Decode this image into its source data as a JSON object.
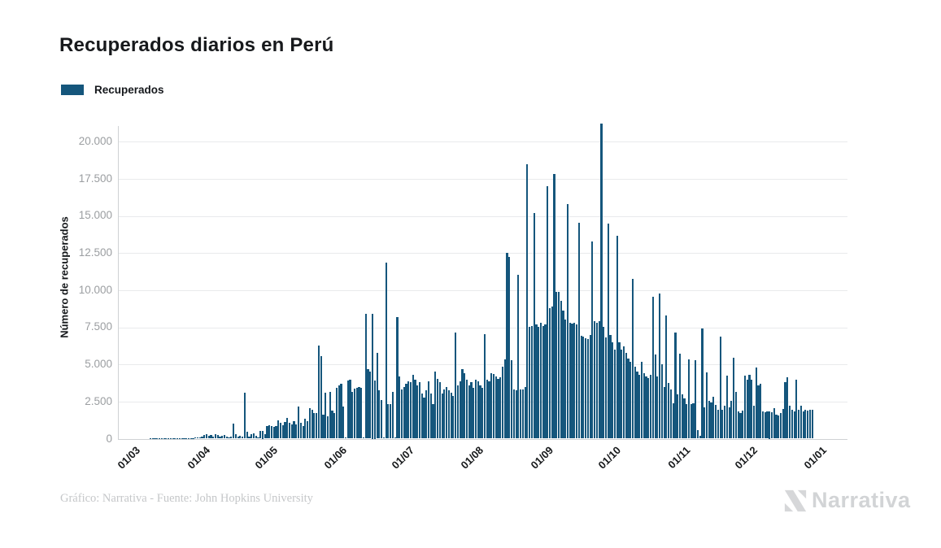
{
  "title": "Recuperados diarios en Perú",
  "legend": {
    "label": "Recuperados",
    "color": "#15567c"
  },
  "y_axis": {
    "title": "Número de recuperados",
    "tick_labels": [
      "0",
      "2.500",
      "5.000",
      "7.500",
      "10.000",
      "12.500",
      "15.000",
      "17.500",
      "20.000"
    ],
    "max": 20000,
    "step": 2500
  },
  "x_axis": {
    "tick_labels": [
      "01/03",
      "01/04",
      "01/05",
      "01/06",
      "01/07",
      "01/08",
      "01/09",
      "01/10",
      "01/11",
      "01/12",
      "01/01"
    ]
  },
  "footer": {
    "credit": "Gráfico: Narrativa - Fuente: John Hopkins University"
  },
  "logo": {
    "text": "Narrativa"
  },
  "chart_data": {
    "type": "bar",
    "title": "Recuperados diarios en Perú",
    "xlabel": "",
    "ylabel": "Número de recuperados",
    "ylim": [
      0,
      21500
    ],
    "grid": true,
    "legend_position": "top-left",
    "series_name": "Recuperados",
    "bar_color": "#15567c",
    "frequency": "daily",
    "start_date": "01/03",
    "end_date": "31/12",
    "x_tick_labels": [
      "01/03",
      "01/04",
      "01/05",
      "01/06",
      "01/07",
      "01/08",
      "01/09",
      "01/10",
      "01/11",
      "01/12",
      "01/01"
    ],
    "month_day_offsets": [
      0,
      31,
      61,
      92,
      122,
      153,
      184,
      214,
      245,
      275,
      306
    ],
    "values": [
      0,
      0,
      0,
      0,
      0,
      0,
      0,
      0,
      5,
      8,
      10,
      12,
      15,
      18,
      20,
      22,
      25,
      28,
      30,
      32,
      35,
      38,
      40,
      42,
      45,
      48,
      50,
      55,
      60,
      70,
      80,
      150,
      250,
      300,
      180,
      220,
      150,
      280,
      270,
      120,
      200,
      230,
      150,
      100,
      160,
      1000,
      300,
      150,
      200,
      120,
      3100,
      460,
      150,
      310,
      370,
      200,
      100,
      510,
      520,
      300,
      860,
      880,
      850,
      800,
      870,
      1240,
      1060,
      900,
      1100,
      1370,
      1060,
      970,
      1150,
      970,
      2150,
      1060,
      875,
      1330,
      1150,
      2060,
      1970,
      1700,
      1700,
      6260,
      5530,
      1600,
      3070,
      1515,
      3160,
      1880,
      1700,
      3430,
      3600,
      3700,
      2150,
      100,
      3890,
      3980,
      3160,
      3340,
      3430,
      3500,
      3430,
      100,
      8380,
      4690,
      4510,
      8430,
      3900,
      5790,
      3230,
      2590,
      100,
      11870,
      2320,
      2320,
      3140,
      100,
      8160,
      4180,
      3320,
      3500,
      3690,
      3870,
      3780,
      4290,
      3960,
      3600,
      3780,
      3050,
      2770,
      3230,
      3870,
      3050,
      2320,
      4510,
      4050,
      3780,
      3050,
      3320,
      3500,
      3230,
      3100,
      2900,
      7150,
      3600,
      3870,
      4690,
      4400,
      3960,
      3600,
      3780,
      3400,
      3960,
      3870,
      3600,
      3410,
      7010,
      3960,
      3870,
      4420,
      4330,
      4180,
      4000,
      4150,
      4820,
      5330,
      12500,
      12250,
      5300,
      3320,
      3230,
      11050,
      3300,
      3300,
      3480,
      18500,
      7500,
      7600,
      15170,
      7700,
      7500,
      7800,
      7600,
      7700,
      17000,
      8800,
      8900,
      17800,
      9870,
      9870,
      9300,
      8600,
      8000,
      15800,
      7800,
      7750,
      7800,
      7700,
      14530,
      6900,
      6850,
      6750,
      6700,
      7000,
      13300,
      7900,
      7800,
      7900,
      21200,
      7500,
      6800,
      14470,
      7000,
      6500,
      6000,
      13650,
      6500,
      6000,
      6200,
      5800,
      5400,
      5200,
      10730,
      4850,
      4500,
      4300,
      5200,
      4400,
      4200,
      4100,
      4300,
      9540,
      5680,
      4200,
      9780,
      5000,
      3500,
      8320,
      3740,
      3300,
      2400,
      7170,
      3000,
      5710,
      3010,
      2720,
      2320,
      5330,
      2350,
      2400,
      5270,
      580,
      200,
      7400,
      2100,
      4470,
      2540,
      2410,
      2830,
      2280,
      1950,
      6880,
      1950,
      2230,
      4230,
      2100,
      2560,
      5460,
      3140,
      1810,
      1730,
      1900,
      4230,
      3960,
      4290,
      3960,
      2200,
      4780,
      3560,
      3710,
      1850,
      1800,
      1850,
      1820,
      1800,
      2060,
      1600,
      1550,
      1700,
      2000,
      3830,
      4140,
      2230,
      1970,
      1825,
      3960,
      1950,
      2230,
      1830,
      1970,
      1900,
      1950,
      1970,
      0,
      0
    ]
  }
}
